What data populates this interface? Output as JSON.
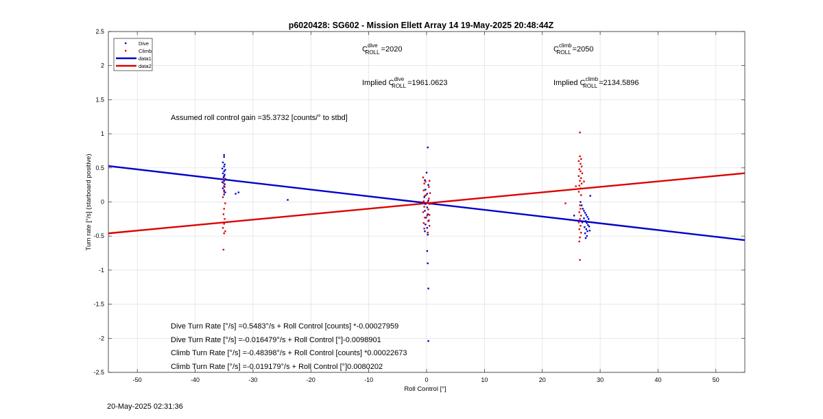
{
  "footer": {
    "timestamp": "20-May-2025 02:31:36"
  },
  "chart_data": {
    "type": "scatter",
    "title": "p6020428: SG602 - Mission Ellett Array 14 19-May-2025 20:48:44Z",
    "xlabel": "Roll Control [°]",
    "ylabel": "Turn rate [°/s] (starboard positive)",
    "xlim": [
      -55,
      55
    ],
    "ylim": [
      -2.5,
      2.5
    ],
    "xticks": [
      -50,
      -40,
      -30,
      -20,
      -10,
      0,
      10,
      20,
      30,
      40,
      50
    ],
    "yticks": [
      -2.5,
      -2,
      -1.5,
      -1,
      -0.5,
      0,
      0.5,
      1,
      1.5,
      2,
      2.5
    ],
    "grid": true,
    "legend": {
      "position": "top-left",
      "entries": [
        {
          "label": "Dive",
          "kind": "marker",
          "color": "#0000cc"
        },
        {
          "label": "Climb",
          "kind": "marker",
          "color": "#dd0000"
        },
        {
          "label": "data1",
          "kind": "line",
          "color": "#0000cc"
        },
        {
          "label": "data2",
          "kind": "line",
          "color": "#dd0000"
        }
      ]
    },
    "annotations": {
      "c_roll_dive": {
        "base": "C",
        "sup": "dive",
        "sub": "ROLL",
        "value": "=2020"
      },
      "c_roll_climb": {
        "base": "C",
        "sup": "climb",
        "sub": "ROLL",
        "value": "=2050"
      },
      "implied_dive": {
        "prefix": "Implied ",
        "base": "C",
        "sup": "dive",
        "sub": "ROLL",
        "value": "=1961.0623"
      },
      "implied_climb": {
        "prefix": "Implied ",
        "base": "C",
        "sup": "climb",
        "sub": "ROLL",
        "value": "=2134.5896"
      },
      "gain": "Assumed roll control gain =35.3732 [counts/° to stbd]",
      "eq1": "Dive Turn Rate [°/s] =0.5483°/s + Roll Control [counts] *-0.00027959",
      "eq2": "Dive Turn Rate [°/s] =-0.016479°/s + Roll Control [°]-0.0098901",
      "eq3": "Climb Turn Rate [°/s] =-0.48398°/s + Roll Control [counts] *0.00022673",
      "eq4": "Climb Turn Rate [°/s] =-0.019179°/s + Roll Control [°]0.0080202"
    },
    "series": [
      {
        "name": "Dive",
        "kind": "scatter",
        "color": "#0000cc",
        "points": [
          [
            -35,
            0.69
          ],
          [
            -35,
            0.66
          ],
          [
            -35.2,
            0.58
          ],
          [
            -34.9,
            0.55
          ],
          [
            -35,
            0.52
          ],
          [
            -35.3,
            0.49
          ],
          [
            -34.8,
            0.47
          ],
          [
            -35,
            0.45
          ],
          [
            -35.2,
            0.42
          ],
          [
            -34.9,
            0.4
          ],
          [
            -35,
            0.38
          ],
          [
            -35.1,
            0.36
          ],
          [
            -34.8,
            0.34
          ],
          [
            -35,
            0.31
          ],
          [
            -35.3,
            0.29
          ],
          [
            -34.9,
            0.26
          ],
          [
            -35,
            0.23
          ],
          [
            -35.2,
            0.2
          ],
          [
            -35,
            0.17
          ],
          [
            -34.8,
            0.14
          ],
          [
            -35,
            0.11
          ],
          [
            -33,
            0.12
          ],
          [
            -32.5,
            0.14
          ],
          [
            -24,
            0.03
          ],
          [
            0.2,
            0.8
          ],
          [
            0,
            0.43
          ],
          [
            -0.3,
            0.32
          ],
          [
            0.3,
            0.25
          ],
          [
            -0.2,
            0.18
          ],
          [
            0.1,
            0.12
          ],
          [
            -0.4,
            0.07
          ],
          [
            0.3,
            0.02
          ],
          [
            -0.2,
            -0.03
          ],
          [
            0.1,
            -0.08
          ],
          [
            -0.3,
            -0.13
          ],
          [
            0.2,
            -0.18
          ],
          [
            -0.1,
            -0.23
          ],
          [
            0.3,
            -0.28
          ],
          [
            -0.2,
            -0.33
          ],
          [
            0.1,
            -0.38
          ],
          [
            -0.3,
            -0.43
          ],
          [
            0.2,
            -0.48
          ],
          [
            0.1,
            -0.72
          ],
          [
            0.2,
            -0.9
          ],
          [
            0.3,
            -1.27
          ],
          [
            0.3,
            -2.04
          ],
          [
            26.6,
            0.0
          ],
          [
            26.8,
            -0.05
          ],
          [
            27.0,
            -0.1
          ],
          [
            27.2,
            -0.13
          ],
          [
            27.4,
            -0.16
          ],
          [
            27.6,
            -0.19
          ],
          [
            27.8,
            -0.22
          ],
          [
            28.0,
            -0.25
          ],
          [
            27.5,
            -0.28
          ],
          [
            27.7,
            -0.31
          ],
          [
            27.9,
            -0.34
          ],
          [
            27.3,
            -0.37
          ],
          [
            27.6,
            -0.4
          ],
          [
            27.8,
            -0.43
          ],
          [
            27.4,
            -0.46
          ],
          [
            27.7,
            -0.5
          ],
          [
            27.5,
            -0.53
          ],
          [
            28.1,
            -0.36
          ],
          [
            27.2,
            -0.24
          ],
          [
            26.9,
            -0.3
          ],
          [
            28.2,
            -0.42
          ],
          [
            25.5,
            -0.2
          ],
          [
            28.3,
            0.09
          ]
        ]
      },
      {
        "name": "Climb",
        "kind": "scatter",
        "color": "#dd0000",
        "points": [
          [
            -35,
            0.33
          ],
          [
            -35.1,
            0.28
          ],
          [
            -34.9,
            0.22
          ],
          [
            -35,
            0.15
          ],
          [
            -35.2,
            0.07
          ],
          [
            -34.8,
            -0.02
          ],
          [
            -35,
            -0.1
          ],
          [
            -35.1,
            -0.18
          ],
          [
            -34.9,
            -0.25
          ],
          [
            -35,
            -0.32
          ],
          [
            -35.2,
            -0.38
          ],
          [
            -34.8,
            -0.43
          ],
          [
            -35,
            -0.46
          ],
          [
            -35.1,
            -0.7
          ],
          [
            -0.6,
            0.36
          ],
          [
            0.5,
            0.31
          ],
          [
            -0.4,
            0.27
          ],
          [
            0.4,
            0.22
          ],
          [
            -0.5,
            0.17
          ],
          [
            0.6,
            0.13
          ],
          [
            -0.3,
            0.09
          ],
          [
            0.4,
            0.05
          ],
          [
            -0.5,
            0.01
          ],
          [
            0.5,
            -0.03
          ],
          [
            -0.4,
            -0.07
          ],
          [
            0.3,
            -0.11
          ],
          [
            -0.6,
            -0.15
          ],
          [
            0.5,
            -0.19
          ],
          [
            -0.3,
            -0.23
          ],
          [
            0.4,
            -0.27
          ],
          [
            -0.5,
            -0.31
          ],
          [
            0.5,
            -0.35
          ],
          [
            -0.4,
            -0.39
          ],
          [
            0.2,
            -0.45
          ],
          [
            -0.2,
            0.3
          ],
          [
            0.1,
            -0.2
          ],
          [
            -0.1,
            0.1
          ],
          [
            0.2,
            0.0
          ],
          [
            26.5,
            1.02
          ],
          [
            26.5,
            0.67
          ],
          [
            26.7,
            0.63
          ],
          [
            26.3,
            0.6
          ],
          [
            26.6,
            0.56
          ],
          [
            26.8,
            0.52
          ],
          [
            26.4,
            0.48
          ],
          [
            26.6,
            0.45
          ],
          [
            26.9,
            0.42
          ],
          [
            26.3,
            0.38
          ],
          [
            26.7,
            0.35
          ],
          [
            26.5,
            0.31
          ],
          [
            26.8,
            0.27
          ],
          [
            26.4,
            0.24
          ],
          [
            26.6,
            0.2
          ],
          [
            26.3,
            0.15
          ],
          [
            26.7,
            0.1
          ],
          [
            25.8,
            0.23
          ],
          [
            27.2,
            0.3
          ],
          [
            24,
            -0.02
          ],
          [
            26.5,
            -0.05
          ],
          [
            26.6,
            -0.1
          ],
          [
            26.4,
            -0.15
          ],
          [
            26.7,
            -0.2
          ],
          [
            26.5,
            -0.25
          ],
          [
            26.3,
            -0.3
          ],
          [
            26.6,
            -0.35
          ],
          [
            26.4,
            -0.4
          ],
          [
            26.7,
            -0.45
          ],
          [
            26.5,
            -0.52
          ],
          [
            26.4,
            -0.58
          ],
          [
            26.5,
            -0.85
          ]
        ]
      },
      {
        "name": "data1",
        "kind": "line",
        "color": "#0000cc",
        "width": 2.4,
        "points": [
          [
            -55,
            0.5275
          ],
          [
            55,
            -0.5604
          ]
        ]
      },
      {
        "name": "data2",
        "kind": "line",
        "color": "#dd0000",
        "width": 2.4,
        "points": [
          [
            -55,
            -0.4603
          ],
          [
            55,
            0.4219
          ]
        ]
      }
    ]
  }
}
